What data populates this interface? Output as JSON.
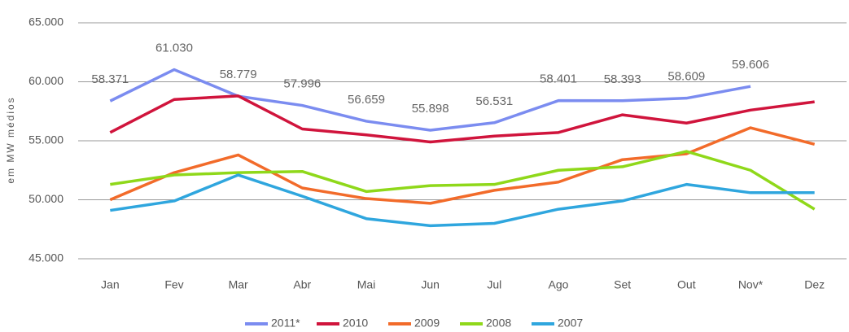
{
  "chart_data": {
    "type": "line",
    "y_label": "em MW médios",
    "categories": [
      "Jan",
      "Fev",
      "Mar",
      "Abr",
      "Mai",
      "Jun",
      "Jul",
      "Ago",
      "Set",
      "Out",
      "Nov*",
      "Dez"
    ],
    "ylim": [
      45000,
      65000
    ],
    "yticks": [
      {
        "value": 45000,
        "label": "45.000"
      },
      {
        "value": 50000,
        "label": "50.000"
      },
      {
        "value": 55000,
        "label": "55.000"
      },
      {
        "value": 60000,
        "label": "60.000"
      },
      {
        "value": 65000,
        "label": "65.000"
      }
    ],
    "grid": true,
    "legend": "bottom",
    "series": [
      {
        "name": "2011*",
        "color": "#7b8cf0",
        "values": [
          58371,
          61030,
          58779,
          57996,
          56659,
          55898,
          56531,
          58401,
          58393,
          58609,
          59606,
          null
        ],
        "value_labels": [
          "58.371",
          "61.030",
          "58.779",
          "57.996",
          "56.659",
          "55.898",
          "56.531",
          "58.401",
          "58.393",
          "58.609",
          "59.606",
          null
        ]
      },
      {
        "name": "2010",
        "color": "#d0143c",
        "values": [
          55700,
          58500,
          58800,
          56000,
          55500,
          54900,
          55400,
          55700,
          57200,
          56500,
          57600,
          58300
        ]
      },
      {
        "name": "2009",
        "color": "#f26b2a",
        "values": [
          50000,
          52300,
          53800,
          51000,
          50100,
          49700,
          50800,
          51500,
          53400,
          53900,
          56100,
          54700
        ]
      },
      {
        "name": "2008",
        "color": "#8fd81a",
        "values": [
          51300,
          52100,
          52300,
          52400,
          50700,
          51200,
          51300,
          52500,
          52800,
          54100,
          52500,
          49200
        ]
      },
      {
        "name": "2007",
        "color": "#2fa6de",
        "values": [
          49100,
          49900,
          52100,
          50300,
          48400,
          47800,
          48000,
          49200,
          49900,
          51300,
          50600,
          50600
        ]
      }
    ]
  }
}
